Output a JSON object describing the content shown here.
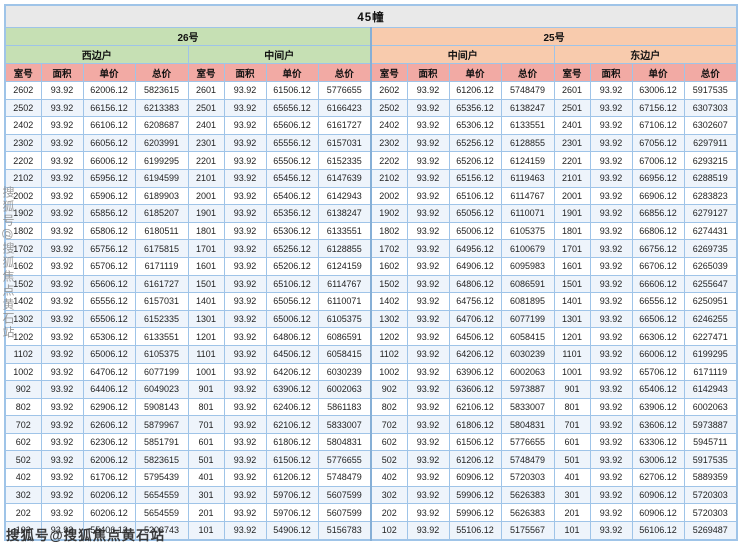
{
  "title": "45幢",
  "watermarks": {
    "left_vertical": "搜狐号@搜狐焦点黄石站",
    "bottom": "搜狐号@搜狐焦点黄石站"
  },
  "table": {
    "buildings": [
      {
        "name": "26号",
        "units": [
          "西边户",
          "中间户"
        ]
      },
      {
        "name": "25号",
        "units": [
          "中间户",
          "东边户"
        ]
      }
    ],
    "column_headers": [
      "室号",
      "面积",
      "单价",
      "总价"
    ],
    "colors": {
      "title_bg": "#e9e9e9",
      "building_26": "#c6e0b4",
      "building_25": "#f8cbad",
      "column_header": "#f2aaa4",
      "grid_border": "#9fc4e8",
      "row_band": "#eef4fb"
    },
    "rows": [
      [
        [
          "2602",
          "93.92",
          "62006.12",
          "5823615"
        ],
        [
          "2601",
          "93.92",
          "61506.12",
          "5776655"
        ],
        [
          "2602",
          "93.92",
          "61206.12",
          "5748479"
        ],
        [
          "2601",
          "93.92",
          "63006.12",
          "5917535"
        ]
      ],
      [
        [
          "2502",
          "93.92",
          "66156.12",
          "6213383"
        ],
        [
          "2501",
          "93.92",
          "65656.12",
          "6166423"
        ],
        [
          "2502",
          "93.92",
          "65356.12",
          "6138247"
        ],
        [
          "2501",
          "93.92",
          "67156.12",
          "6307303"
        ]
      ],
      [
        [
          "2402",
          "93.92",
          "66106.12",
          "6208687"
        ],
        [
          "2401",
          "93.92",
          "65606.12",
          "6161727"
        ],
        [
          "2402",
          "93.92",
          "65306.12",
          "6133551"
        ],
        [
          "2401",
          "93.92",
          "67106.12",
          "6302607"
        ]
      ],
      [
        [
          "2302",
          "93.92",
          "66056.12",
          "6203991"
        ],
        [
          "2301",
          "93.92",
          "65556.12",
          "6157031"
        ],
        [
          "2302",
          "93.92",
          "65256.12",
          "6128855"
        ],
        [
          "2301",
          "93.92",
          "67056.12",
          "6297911"
        ]
      ],
      [
        [
          "2202",
          "93.92",
          "66006.12",
          "6199295"
        ],
        [
          "2201",
          "93.92",
          "65506.12",
          "6152335"
        ],
        [
          "2202",
          "93.92",
          "65206.12",
          "6124159"
        ],
        [
          "2201",
          "93.92",
          "67006.12",
          "6293215"
        ]
      ],
      [
        [
          "2102",
          "93.92",
          "65956.12",
          "6194599"
        ],
        [
          "2101",
          "93.92",
          "65456.12",
          "6147639"
        ],
        [
          "2102",
          "93.92",
          "65156.12",
          "6119463"
        ],
        [
          "2101",
          "93.92",
          "66956.12",
          "6288519"
        ]
      ],
      [
        [
          "2002",
          "93.92",
          "65906.12",
          "6189903"
        ],
        [
          "2001",
          "93.92",
          "65406.12",
          "6142943"
        ],
        [
          "2002",
          "93.92",
          "65106.12",
          "6114767"
        ],
        [
          "2001",
          "93.92",
          "66906.12",
          "6283823"
        ]
      ],
      [
        [
          "1902",
          "93.92",
          "65856.12",
          "6185207"
        ],
        [
          "1901",
          "93.92",
          "65356.12",
          "6138247"
        ],
        [
          "1902",
          "93.92",
          "65056.12",
          "6110071"
        ],
        [
          "1901",
          "93.92",
          "66856.12",
          "6279127"
        ]
      ],
      [
        [
          "1802",
          "93.92",
          "65806.12",
          "6180511"
        ],
        [
          "1801",
          "93.92",
          "65306.12",
          "6133551"
        ],
        [
          "1802",
          "93.92",
          "65006.12",
          "6105375"
        ],
        [
          "1801",
          "93.92",
          "66806.12",
          "6274431"
        ]
      ],
      [
        [
          "1702",
          "93.92",
          "65756.12",
          "6175815"
        ],
        [
          "1701",
          "93.92",
          "65256.12",
          "6128855"
        ],
        [
          "1702",
          "93.92",
          "64956.12",
          "6100679"
        ],
        [
          "1701",
          "93.92",
          "66756.12",
          "6269735"
        ]
      ],
      [
        [
          "1602",
          "93.92",
          "65706.12",
          "6171119"
        ],
        [
          "1601",
          "93.92",
          "65206.12",
          "6124159"
        ],
        [
          "1602",
          "93.92",
          "64906.12",
          "6095983"
        ],
        [
          "1601",
          "93.92",
          "66706.12",
          "6265039"
        ]
      ],
      [
        [
          "1502",
          "93.92",
          "65606.12",
          "6161727"
        ],
        [
          "1501",
          "93.92",
          "65106.12",
          "6114767"
        ],
        [
          "1502",
          "93.92",
          "64806.12",
          "6086591"
        ],
        [
          "1501",
          "93.92",
          "66606.12",
          "6255647"
        ]
      ],
      [
        [
          "1402",
          "93.92",
          "65556.12",
          "6157031"
        ],
        [
          "1401",
          "93.92",
          "65056.12",
          "6110071"
        ],
        [
          "1402",
          "93.92",
          "64756.12",
          "6081895"
        ],
        [
          "1401",
          "93.92",
          "66556.12",
          "6250951"
        ]
      ],
      [
        [
          "1302",
          "93.92",
          "65506.12",
          "6152335"
        ],
        [
          "1301",
          "93.92",
          "65006.12",
          "6105375"
        ],
        [
          "1302",
          "93.92",
          "64706.12",
          "6077199"
        ],
        [
          "1301",
          "93.92",
          "66506.12",
          "6246255"
        ]
      ],
      [
        [
          "1202",
          "93.92",
          "65306.12",
          "6133551"
        ],
        [
          "1201",
          "93.92",
          "64806.12",
          "6086591"
        ],
        [
          "1202",
          "93.92",
          "64506.12",
          "6058415"
        ],
        [
          "1201",
          "93.92",
          "66306.12",
          "6227471"
        ]
      ],
      [
        [
          "1102",
          "93.92",
          "65006.12",
          "6105375"
        ],
        [
          "1101",
          "93.92",
          "64506.12",
          "6058415"
        ],
        [
          "1102",
          "93.92",
          "64206.12",
          "6030239"
        ],
        [
          "1101",
          "93.92",
          "66006.12",
          "6199295"
        ]
      ],
      [
        [
          "1002",
          "93.92",
          "64706.12",
          "6077199"
        ],
        [
          "1001",
          "93.92",
          "64206.12",
          "6030239"
        ],
        [
          "1002",
          "93.92",
          "63906.12",
          "6002063"
        ],
        [
          "1001",
          "93.92",
          "65706.12",
          "6171119"
        ]
      ],
      [
        [
          "902",
          "93.92",
          "64406.12",
          "6049023"
        ],
        [
          "901",
          "93.92",
          "63906.12",
          "6002063"
        ],
        [
          "902",
          "93.92",
          "63606.12",
          "5973887"
        ],
        [
          "901",
          "93.92",
          "65406.12",
          "6142943"
        ]
      ],
      [
        [
          "802",
          "93.92",
          "62906.12",
          "5908143"
        ],
        [
          "801",
          "93.92",
          "62406.12",
          "5861183"
        ],
        [
          "802",
          "93.92",
          "62106.12",
          "5833007"
        ],
        [
          "801",
          "93.92",
          "63906.12",
          "6002063"
        ]
      ],
      [
        [
          "702",
          "93.92",
          "62606.12",
          "5879967"
        ],
        [
          "701",
          "93.92",
          "62106.12",
          "5833007"
        ],
        [
          "702",
          "93.92",
          "61806.12",
          "5804831"
        ],
        [
          "701",
          "93.92",
          "63606.12",
          "5973887"
        ]
      ],
      [
        [
          "602",
          "93.92",
          "62306.12",
          "5851791"
        ],
        [
          "601",
          "93.92",
          "61806.12",
          "5804831"
        ],
        [
          "602",
          "93.92",
          "61506.12",
          "5776655"
        ],
        [
          "601",
          "93.92",
          "63306.12",
          "5945711"
        ]
      ],
      [
        [
          "502",
          "93.92",
          "62006.12",
          "5823615"
        ],
        [
          "501",
          "93.92",
          "61506.12",
          "5776655"
        ],
        [
          "502",
          "93.92",
          "61206.12",
          "5748479"
        ],
        [
          "501",
          "93.92",
          "63006.12",
          "5917535"
        ]
      ],
      [
        [
          "402",
          "93.92",
          "61706.12",
          "5795439"
        ],
        [
          "401",
          "93.92",
          "61206.12",
          "5748479"
        ],
        [
          "402",
          "93.92",
          "60906.12",
          "5720303"
        ],
        [
          "401",
          "93.92",
          "62706.12",
          "5889359"
        ]
      ],
      [
        [
          "302",
          "93.92",
          "60206.12",
          "5654559"
        ],
        [
          "301",
          "93.92",
          "59706.12",
          "5607599"
        ],
        [
          "302",
          "93.92",
          "59906.12",
          "5626383"
        ],
        [
          "301",
          "93.92",
          "60906.12",
          "5720303"
        ]
      ],
      [
        [
          "202",
          "93.92",
          "60206.12",
          "5654559"
        ],
        [
          "201",
          "93.92",
          "59706.12",
          "5607599"
        ],
        [
          "202",
          "93.92",
          "59906.12",
          "5626383"
        ],
        [
          "201",
          "93.92",
          "60906.12",
          "5720303"
        ]
      ],
      [
        [
          "102",
          "93.92",
          "55406.12",
          "5203743"
        ],
        [
          "101",
          "93.92",
          "54906.12",
          "5156783"
        ],
        [
          "102",
          "93.92",
          "55106.12",
          "5175567"
        ],
        [
          "101",
          "93.92",
          "56106.12",
          "5269487"
        ]
      ]
    ]
  }
}
